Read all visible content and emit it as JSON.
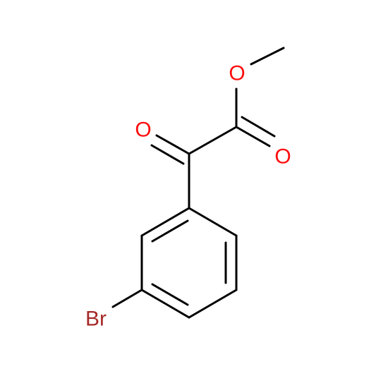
{
  "atoms": [
    {
      "label": "O"
    },
    {
      "label": "O"
    },
    {
      "label": "O"
    },
    {
      "label": "Br"
    }
  ]
}
